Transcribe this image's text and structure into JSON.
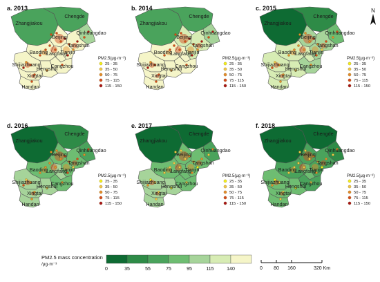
{
  "panels": [
    {
      "id": "a",
      "label": "a. 2013",
      "fills": {
        "zhangjiakou": "#4aa35c",
        "chengde": "#4aa35c",
        "qinhuangdao": "#a6d49a",
        "tangshan": "#f5f5c8",
        "beijing": "#f5f5c8",
        "tianjin": "#f5f5c8",
        "langfang": "#f5f5c8",
        "baoding": "#f5f5c8",
        "cangzhou": "#f5f5c8",
        "hengshui": "#f5f5c8",
        "shijiazhuang": "#f5f5c8",
        "xingtai": "#f5f5c8",
        "handan": "#f5f5c8"
      }
    },
    {
      "id": "b",
      "label": "b. 2014",
      "fills": {
        "zhangjiakou": "#4aa35c",
        "chengde": "#4aa35c",
        "qinhuangdao": "#a6d49a",
        "tangshan": "#d7ecb4",
        "beijing": "#d7ecb4",
        "tianjin": "#d7ecb4",
        "langfang": "#f5f5c8",
        "baoding": "#f5f5c8",
        "cangzhou": "#f5f5c8",
        "hengshui": "#f5f5c8",
        "shijiazhuang": "#f5f5c8",
        "xingtai": "#f5f5c8",
        "handan": "#f5f5c8"
      }
    },
    {
      "id": "c",
      "label": "c. 2015",
      "fills": {
        "zhangjiakou": "#0e6b33",
        "chengde": "#2e8b47",
        "qinhuangdao": "#6ebd72",
        "tangshan": "#a6d49a",
        "beijing": "#a6d49a",
        "tianjin": "#a6d49a",
        "langfang": "#d7ecb4",
        "baoding": "#d7ecb4",
        "cangzhou": "#a6d49a",
        "hengshui": "#d7ecb4",
        "shijiazhuang": "#d7ecb4",
        "xingtai": "#d7ecb4",
        "handan": "#d7ecb4"
      }
    },
    {
      "id": "d",
      "label": "d. 2016",
      "fills": {
        "zhangjiakou": "#0e6b33",
        "chengde": "#2e8b47",
        "qinhuangdao": "#4aa35c",
        "tangshan": "#6ebd72",
        "beijing": "#6ebd72",
        "tianjin": "#6ebd72",
        "langfang": "#a6d49a",
        "baoding": "#6ebd72",
        "cangzhou": "#6ebd72",
        "hengshui": "#a6d49a",
        "shijiazhuang": "#a6d49a",
        "xingtai": "#a6d49a",
        "handan": "#a6d49a"
      }
    },
    {
      "id": "e",
      "label": "e. 2017",
      "fills": {
        "zhangjiakou": "#0e6b33",
        "chengde": "#0e6b33",
        "qinhuangdao": "#4aa35c",
        "tangshan": "#6ebd72",
        "beijing": "#6ebd72",
        "tianjin": "#6ebd72",
        "langfang": "#6ebd72",
        "baoding": "#6ebd72",
        "cangzhou": "#6ebd72",
        "hengshui": "#a6d49a",
        "shijiazhuang": "#a6d49a",
        "xingtai": "#a6d49a",
        "handan": "#a6d49a"
      }
    },
    {
      "id": "f",
      "label": "f. 2018",
      "fills": {
        "zhangjiakou": "#0e6b33",
        "chengde": "#0e6b33",
        "qinhuangdao": "#2e8b47",
        "tangshan": "#4aa35c",
        "beijing": "#4aa35c",
        "tianjin": "#4aa35c",
        "langfang": "#6ebd72",
        "baoding": "#4aa35c",
        "cangzhou": "#4aa35c",
        "hengshui": "#6ebd72",
        "shijiazhuang": "#6ebd72",
        "xingtai": "#6ebd72",
        "handan": "#6ebd72"
      }
    }
  ],
  "cities": [
    {
      "key": "zhangjiakou",
      "name": "Zhangjiakou"
    },
    {
      "key": "chengde",
      "name": "Chengde"
    },
    {
      "key": "qinhuangdao",
      "name": "Qinhuangdao"
    },
    {
      "key": "beijing",
      "name": "Beijing"
    },
    {
      "key": "tangshan",
      "name": "Tangshan"
    },
    {
      "key": "tianjin",
      "name": "Tianjin"
    },
    {
      "key": "langfang",
      "name": "Langfang"
    },
    {
      "key": "baoding",
      "name": "Baoding"
    },
    {
      "key": "cangzhou",
      "name": "Cangzhou"
    },
    {
      "key": "shijiazhuang",
      "name": "Shijiazhuang"
    },
    {
      "key": "hengshui",
      "name": "Hengshui"
    },
    {
      "key": "xingtai",
      "name": "Xingtai"
    },
    {
      "key": "handan",
      "name": "Handan"
    }
  ],
  "point_legend": {
    "title": "PM2.5(μg·m⁻³)",
    "items": [
      {
        "label": "25 - 35",
        "color": "#f4f21a"
      },
      {
        "label": "35 - 50",
        "color": "#f0c84a"
      },
      {
        "label": "50 - 75",
        "color": "#e48c2c"
      },
      {
        "label": "75 - 115",
        "color": "#d44a1e"
      },
      {
        "label": "115 - 150",
        "color": "#a8141a"
      }
    ]
  },
  "color_scale": {
    "title_line1": "PM2.5 mass concentration",
    "title_line2": "/μg·m⁻³",
    "stops": [
      "0",
      "35",
      "55",
      "75",
      "95",
      "115",
      "140"
    ],
    "colors": [
      "#0e6b33",
      "#2e8b47",
      "#4aa35c",
      "#6ebd72",
      "#a6d49a",
      "#d7ecb4",
      "#f5f5c8"
    ]
  },
  "distance_bar": {
    "labels": [
      "0",
      "80",
      "160",
      "320 Km"
    ]
  },
  "north_label": "N"
}
